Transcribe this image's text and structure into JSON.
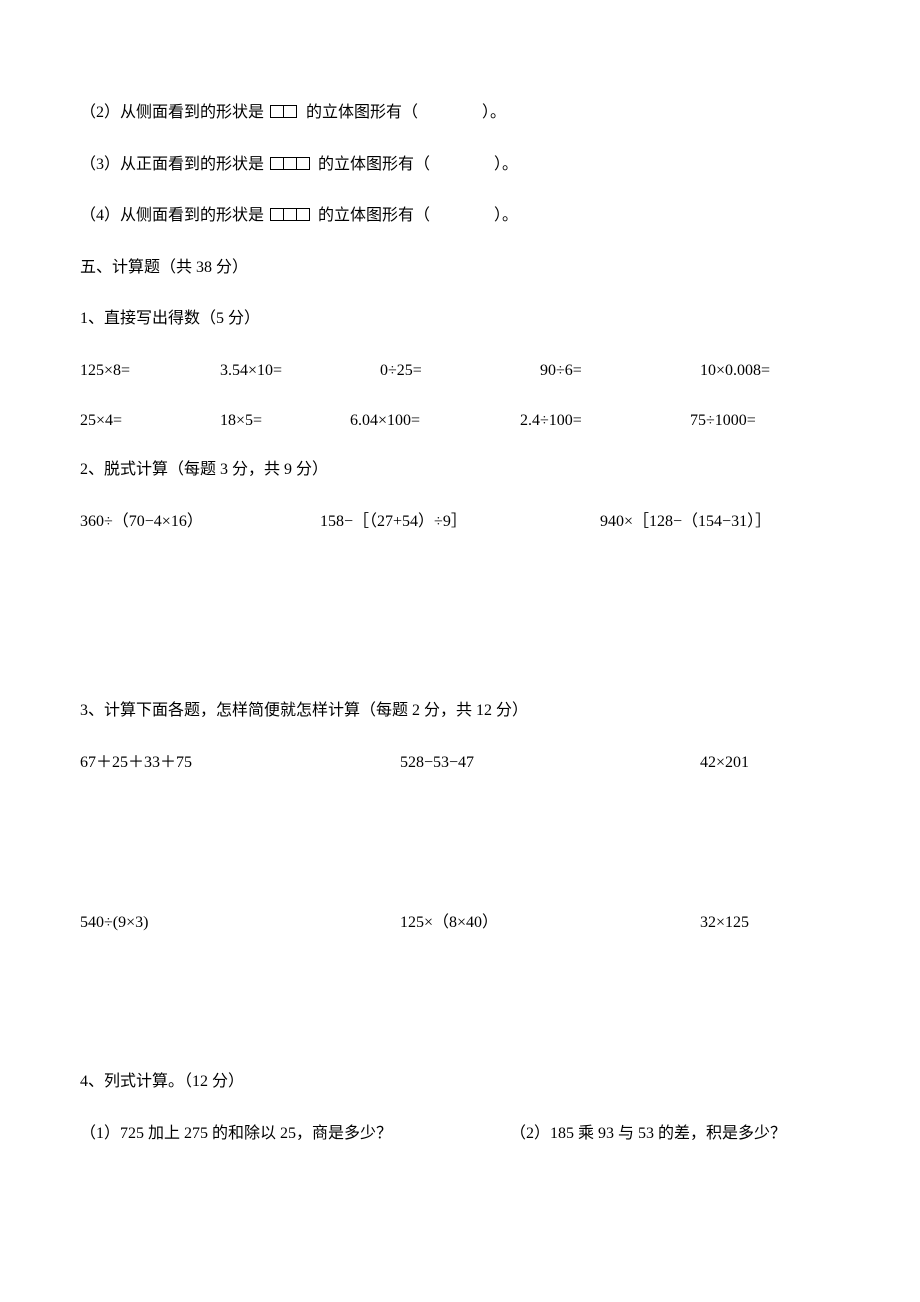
{
  "q2": {
    "prefix": "（2）从侧面看到的形状是",
    "suffix": "的立体图形有（　　　　）。"
  },
  "q3": {
    "prefix": "（3）从正面看到的形状是",
    "suffix": "的立体图形有（　　　　）。"
  },
  "q4": {
    "prefix": "（4）从侧面看到的形状是",
    "suffix": "的立体图形有（　　　　）。"
  },
  "section5": "五、计算题（共 38 分）",
  "p1": {
    "title": "1、直接写出得数（5 分）",
    "row1": [
      "125×8=",
      "3.54×10=",
      "0÷25=",
      "90÷6=",
      "10×0.008="
    ],
    "row2": [
      "25×4=",
      "18×5=",
      "6.04×100=",
      "2.4÷100=",
      "75÷1000="
    ]
  },
  "p2": {
    "title": "2、脱式计算（每题 3 分，共 9 分）",
    "items": [
      "360÷（70−4×16）",
      "158−［（27+54）÷9］",
      "940×［128−（154−31）］"
    ]
  },
  "p3": {
    "title": "3、计算下面各题，怎样简便就怎样计算（每题 2 分，共 12 分）",
    "row1": [
      "67＋25＋33＋75",
      "528−53−47",
      "42×201"
    ],
    "row2": [
      "540÷(9×3)",
      "125×（8×40）",
      "32×125"
    ]
  },
  "p4": {
    "title": "4、列式计算。（12 分）",
    "items": [
      "（1）725 加上 275 的和除以 25，商是多少？",
      "（2）185 乘 93 与 53 的差，积是多少？"
    ]
  }
}
